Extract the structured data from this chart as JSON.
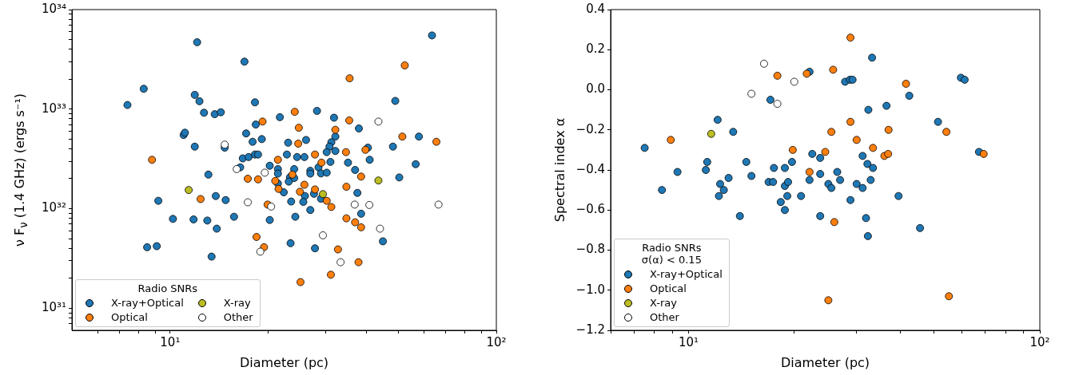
{
  "chart_data": [
    {
      "type": "scatter",
      "xlabel": "Diameter (pc)",
      "ylabel": "ν F$_{ν}$ (1.4 GHz) (ergs s⁻¹)",
      "legend_title": "Radio SNRs",
      "legend": "bottom left",
      "log": "xy",
      "marker": "circle",
      "xlim": [
        5,
        100
      ],
      "xticks": [
        {
          "value": 6,
          "label": null
        },
        {
          "value": 7,
          "label": null
        },
        {
          "value": 8,
          "label": null
        },
        {
          "value": 9,
          "label": null
        },
        {
          "value": 10,
          "label": "10¹"
        },
        {
          "value": 20,
          "label": null
        },
        {
          "value": 30,
          "label": null
        },
        {
          "value": 40,
          "label": null
        },
        {
          "value": 50,
          "label": null
        },
        {
          "value": 60,
          "label": null
        },
        {
          "value": 70,
          "label": null
        },
        {
          "value": 80,
          "label": null
        },
        {
          "value": 90,
          "label": null
        },
        {
          "value": 100,
          "label": "10²"
        }
      ],
      "ylim": [
        6e+30,
        1e+34
      ],
      "yticks": [
        {
          "value": 7e+30,
          "label": null
        },
        {
          "value": 8e+30,
          "label": null
        },
        {
          "value": 9e+30,
          "label": null
        },
        {
          "value": 1e+31,
          "label": "10³¹"
        },
        {
          "value": 2e+31,
          "label": null
        },
        {
          "value": 3e+31,
          "label": null
        },
        {
          "value": 4e+31,
          "label": null
        },
        {
          "value": 5e+31,
          "label": null
        },
        {
          "value": 6e+31,
          "label": null
        },
        {
          "value": 7e+31,
          "label": null
        },
        {
          "value": 8e+31,
          "label": null
        },
        {
          "value": 9e+31,
          "label": null
        },
        {
          "value": 1e+32,
          "label": "10³²"
        },
        {
          "value": 2e+32,
          "label": null
        },
        {
          "value": 3e+32,
          "label": null
        },
        {
          "value": 4e+32,
          "label": null
        },
        {
          "value": 5e+32,
          "label": null
        },
        {
          "value": 6e+32,
          "label": null
        },
        {
          "value": 7e+32,
          "label": null
        },
        {
          "value": 8e+32,
          "label": null
        },
        {
          "value": 9e+32,
          "label": null
        },
        {
          "value": 1e+33,
          "label": "10³³"
        },
        {
          "value": 2e+33,
          "label": null
        },
        {
          "value": 3e+33,
          "label": null
        },
        {
          "value": 4e+33,
          "label": null
        },
        {
          "value": 5e+33,
          "label": null
        },
        {
          "value": 6e+33,
          "label": null
        },
        {
          "value": 7e+33,
          "label": null
        },
        {
          "value": 8e+33,
          "label": null
        },
        {
          "value": 9e+33,
          "label": null
        },
        {
          "value": 1e+34,
          "label": "10³⁴"
        }
      ],
      "series": [
        {
          "name": "X-ray+Optical",
          "color": "#1f77b4",
          "x": [
            12.1,
            16.9,
            8.3,
            7.4,
            11.9,
            12.3,
            18.2,
            12.7,
            13.7,
            14.3,
            21.7,
            11.0,
            11.1,
            17.1,
            18.3,
            17.9,
            19.1,
            23.0,
            11.9,
            14.7,
            16.7,
            17.4,
            18.2,
            18.6,
            22.8,
            24.5,
            16.4,
            20.2,
            21.4,
            21.4,
            24.0,
            23.3,
            24.0,
            23.1,
            21.4,
            13.1,
            22.3,
            13.8,
            14.8,
            9.2,
            23.5,
            10.2,
            11.8,
            13.0,
            15.7,
            20.2,
            24.2,
            13.9,
            8.5,
            9.1,
            23.4,
            13.4,
            63.5,
            49.0,
            28.2,
            31.8,
            37.9,
            32.1,
            57.9,
            26.1,
            31.2,
            30.8,
            30.2,
            32.1,
            40.4,
            48.2,
            25.8,
            31.0,
            35.1,
            40.9,
            56.6,
            28.5,
            26.9,
            26.9,
            29.0,
            30.2,
            36.9,
            50.4,
            27.6,
            25.9,
            29.0,
            25.6,
            37.5,
            26.9,
            38.5,
            44.9,
            27.8
          ],
          "values": [
            4.7e+33,
            3e+33,
            1.6e+33,
            1.1e+33,
            1.39e+33,
            1.2e+33,
            1.17e+33,
            9.2e+32,
            8.9e+32,
            9.3e+32,
            8.3e+32,
            5.5e+32,
            5.8e+32,
            5.7e+32,
            7e+32,
            4.7e+32,
            5e+32,
            4.6e+32,
            4.2e+32,
            4.1e+32,
            3.2e+32,
            3.3e+32,
            3.5e+32,
            3.5e+32,
            3.5e+32,
            3.3e+32,
            2.6e+32,
            2.7e+32,
            2.5e+32,
            2.25e+32,
            2.5e+32,
            2.07e+32,
            2.03e+32,
            1.87e+32,
            1.79e+32,
            2.2e+32,
            1.46e+32,
            1.34e+32,
            1.22e+32,
            1.2e+32,
            1.18e+32,
            7.9e+31,
            7.8e+31,
            7.6e+31,
            8.3e+31,
            7.7e+31,
            8.3e+31,
            6.3e+31,
            4.1e+31,
            4.2e+31,
            4.5e+31,
            3.3e+31,
            5.5e+33,
            1.21e+33,
            9.6e+32,
            8.2e+32,
            6.4e+32,
            5.3e+32,
            5.3e+32,
            4.9e+32,
            4.65e+32,
            4.2e+32,
            3.7e+32,
            3.8e+32,
            4.1e+32,
            4.2e+32,
            3.3e+32,
            2.95e+32,
            2.9e+32,
            3.1e+32,
            2.8e+32,
            2.6e+32,
            2.4e+32,
            2.25e+32,
            2.26e+32,
            2.3e+32,
            2.45e+32,
            2.06e+32,
            1.41e+32,
            1.34e+32,
            1.26e+32,
            1.17e+32,
            1.44e+32,
            9.7e+31,
            8.9e+31,
            4.7e+31,
            4e+31
          ]
        },
        {
          "name": "Optical",
          "color": "#ff7f0e",
          "x": [
            8.8,
            24.1,
            24.8,
            19.2,
            24.7,
            21.4,
            17.3,
            18.6,
            21.0,
            21.5,
            23.7,
            25.0,
            12.4,
            19.9,
            18.4,
            19.4,
            25.1,
            52.4,
            35.5,
            35.4,
            32.1,
            51.5,
            65.5,
            27.8,
            34.6,
            39.7,
            29.1,
            38.5,
            25.8,
            27.8,
            34.7,
            30.2,
            31.2,
            34.7,
            36.9,
            38.5,
            32.7,
            37.8,
            31.1
          ],
          "values": [
            3.1e+32,
            9.4e+32,
            6.5e+32,
            7.5e+32,
            4.5e+32,
            3.1e+32,
            2e+32,
            1.97e+32,
            1.9e+32,
            1.58e+32,
            2.2e+32,
            1.48e+32,
            1.25e+32,
            1.1e+32,
            5.2e+31,
            4.1e+31,
            1.83e+31,
            2.75e+33,
            2.04e+33,
            7.7e+32,
            6.2e+32,
            5.3e+32,
            4.7e+32,
            3.5e+32,
            3.7e+32,
            3.9e+32,
            2.9e+32,
            2.1e+32,
            1.74e+32,
            1.56e+32,
            1.66e+32,
            1.2e+32,
            1.04e+32,
            8e+31,
            7.3e+31,
            6.5e+31,
            3.9e+31,
            2.9e+31,
            2.17e+31
          ]
        },
        {
          "name": "X-ray",
          "color": "#bcbd22",
          "x": [
            11.4,
            29.4,
            43.5
          ],
          "values": [
            1.54e+32,
            1.4e+32,
            1.92e+32
          ]
        },
        {
          "name": "Other",
          "color": "#ffffff",
          "x": [
            14.7,
            16.0,
            19.5,
            17.3,
            20.4,
            18.9,
            43.5,
            36.8,
            40.8,
            66.5,
            44.0,
            29.4,
            33.3
          ],
          "values": [
            4.4e+32,
            2.5e+32,
            2.3e+32,
            1.16e+32,
            1.05e+32,
            3.7e+31,
            7.5e+32,
            1.1e+32,
            1.09e+32,
            1.1e+32,
            6.3e+31,
            5.4e+31,
            2.9e+31
          ]
        }
      ]
    },
    {
      "type": "scatter",
      "xlabel": "Diameter (pc)",
      "ylabel": "Spectral index α",
      "legend_title": "Radio SNRs\nσ(α) < 0.15",
      "legend": "bottom left",
      "log": "x",
      "marker": "circle",
      "xlim": [
        6,
        100
      ],
      "xticks": [
        {
          "value": 6,
          "label": null
        },
        {
          "value": 7,
          "label": null
        },
        {
          "value": 8,
          "label": null
        },
        {
          "value": 9,
          "label": null
        },
        {
          "value": 10,
          "label": "10¹"
        },
        {
          "value": 20,
          "label": null
        },
        {
          "value": 30,
          "label": null
        },
        {
          "value": 40,
          "label": null
        },
        {
          "value": 50,
          "label": null
        },
        {
          "value": 60,
          "label": null
        },
        {
          "value": 70,
          "label": null
        },
        {
          "value": 80,
          "label": null
        },
        {
          "value": 90,
          "label": null
        },
        {
          "value": 100,
          "label": "10²"
        }
      ],
      "ylim": [
        -1.2,
        0.4
      ],
      "yticks": [
        {
          "value": -1.2,
          "label": "−1.2"
        },
        {
          "value": -1.0,
          "label": "−1.0"
        },
        {
          "value": -0.8,
          "label": "−0.8"
        },
        {
          "value": -0.6,
          "label": "−0.6"
        },
        {
          "value": -0.4,
          "label": "−0.4"
        },
        {
          "value": -0.2,
          "label": "−0.2"
        },
        {
          "value": 0,
          "label": "0.0"
        },
        {
          "value": 0.2,
          "label": "0.2"
        },
        {
          "value": 0.4,
          "label": "0.4"
        }
      ],
      "series": [
        {
          "name": "X-ray+Optical",
          "color": "#1f77b4",
          "x": [
            7.5,
            8.4,
            9.3,
            11.2,
            11.3,
            12.1,
            12.3,
            12.6,
            12.2,
            13.0,
            13.4,
            14.0,
            14.6,
            15.1,
            16.9,
            17.4,
            17.1,
            17.5,
            18.3,
            18.8,
            18.8,
            19.1,
            19.2,
            18.8,
            19.7,
            20.9,
            22.1,
            22.5,
            22.1,
            23.7,
            23.7,
            23.7,
            33.3,
            27.9,
            28.8,
            29.3,
            59.6,
            61.1,
            42.5,
            36.6,
            32.5,
            51.3,
            31.3,
            32.3,
            33.5,
            67.1,
            26.5,
            27.0,
            25.0,
            25.5,
            30.1,
            31.3,
            33.0,
            28.9,
            39.6,
            32.0,
            32.4,
            45.6
          ],
          "values": [
            -0.29,
            -0.5,
            -0.41,
            -0.4,
            -0.36,
            -0.15,
            -0.47,
            -0.5,
            -0.53,
            -0.44,
            -0.21,
            -0.63,
            -0.36,
            -0.43,
            -0.46,
            -0.46,
            -0.05,
            -0.39,
            -0.56,
            -0.6,
            -0.48,
            -0.53,
            -0.46,
            -0.39,
            -0.36,
            -0.53,
            -0.45,
            -0.32,
            0.09,
            -0.34,
            -0.42,
            -0.63,
            0.16,
            0.04,
            0.05,
            0.05,
            0.06,
            0.05,
            -0.03,
            -0.08,
            -0.1,
            -0.16,
            -0.33,
            -0.37,
            -0.39,
            -0.31,
            -0.41,
            -0.45,
            -0.47,
            -0.49,
            -0.47,
            -0.49,
            -0.45,
            -0.55,
            -0.53,
            -0.64,
            -0.73,
            -0.69
          ]
        },
        {
          "name": "Optical",
          "color": "#ff7f0e",
          "x": [
            8.9,
            17.9,
            19.8,
            22.1,
            21.7,
            28.9,
            25.8,
            41.6,
            28.9,
            25.5,
            37.1,
            54.2,
            30.1,
            24.5,
            33.5,
            36.1,
            37.0,
            69.2,
            26.0,
            25.0,
            55.1
          ],
          "values": [
            -0.25,
            0.07,
            -0.3,
            -0.41,
            0.08,
            0.26,
            0.1,
            0.03,
            -0.16,
            -0.21,
            -0.2,
            -0.21,
            -0.25,
            -0.31,
            -0.29,
            -0.33,
            -0.32,
            -0.32,
            -0.66,
            -1.05,
            -1.03
          ]
        },
        {
          "name": "X-ray",
          "color": "#bcbd22",
          "x": [
            11.6
          ],
          "values": [
            -0.22
          ]
        },
        {
          "name": "Other",
          "color": "#ffffff",
          "x": [
            16.4,
            15.1,
            20.0,
            17.9
          ],
          "values": [
            0.13,
            -0.02,
            0.04,
            -0.07
          ]
        }
      ]
    }
  ]
}
